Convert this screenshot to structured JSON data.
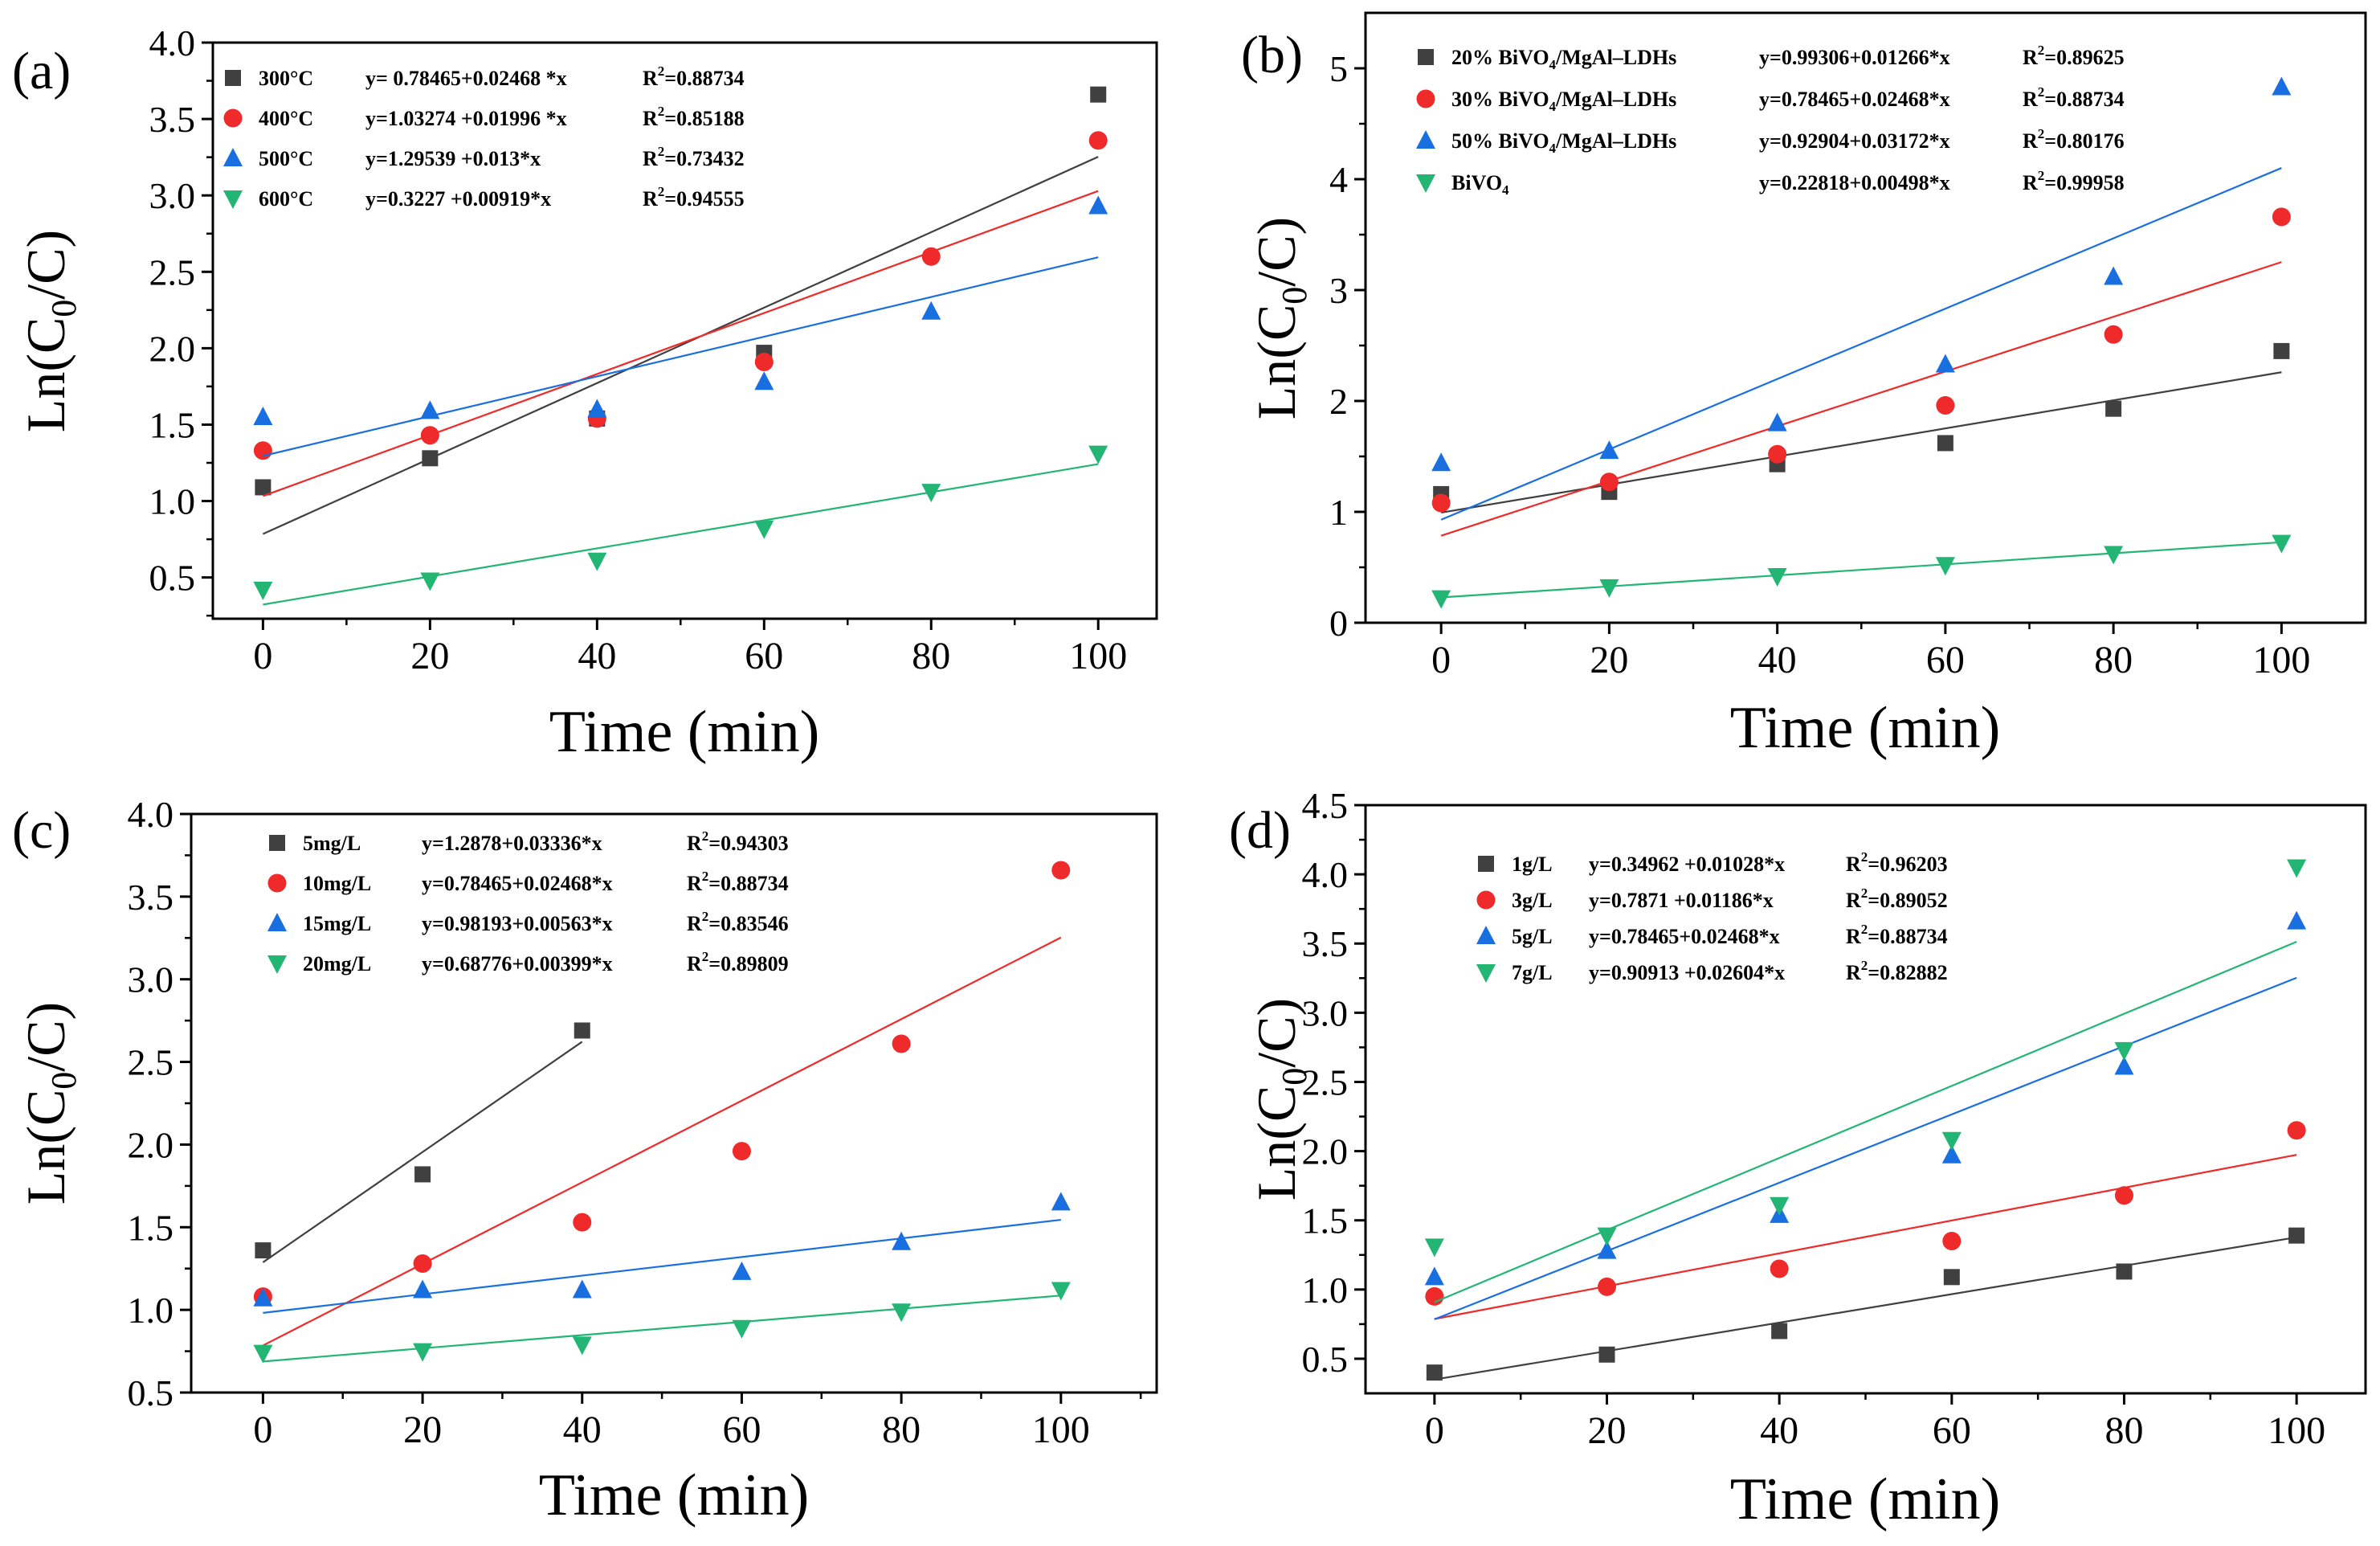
{
  "figure": {
    "panel_count": 4
  },
  "chart_data": [
    {
      "panel_label": "(a)",
      "type": "scatter",
      "title": "",
      "xlabel": "Time (min)",
      "ylabel_main": "Ln(C",
      "ylabel_sub": "0",
      "ylabel_tail": "/C)",
      "xlim": [
        -6,
        107
      ],
      "ylim": [
        0.23,
        4.0
      ],
      "xticks": [
        0,
        20,
        40,
        60,
        80,
        100
      ],
      "yticks": [
        0.5,
        1.0,
        1.5,
        2.0,
        2.5,
        3.0,
        3.5,
        4.0
      ],
      "yticklabels": [
        "0.5",
        "1.0",
        "1.5",
        "2.0",
        "2.5",
        "3.0",
        "3.5",
        "4.0"
      ],
      "legend_position": "top-left",
      "series": [
        {
          "name": "300°C",
          "color": "#404040",
          "marker": "square",
          "x": [
            0,
            20,
            40,
            60
          ],
          "y": [
            1.09,
            1.28,
            1.54,
            1.97
          ],
          "x_extra": [
            100
          ],
          "y_extra": [
            3.66
          ],
          "fit": {
            "intercept": 0.78465,
            "slope": 0.02468,
            "x0": 0,
            "x1": 100
          },
          "equation": "y= 0.78465+0.02468 *x",
          "r2_label": "R",
          "r2_value": "=0.88734"
        },
        {
          "name": "400°C",
          "color": "#ee2a2a",
          "marker": "circle",
          "x": [
            0,
            20,
            40,
            60,
            80,
            100
          ],
          "y": [
            1.33,
            1.43,
            1.54,
            1.91,
            2.6,
            3.36
          ],
          "fit": {
            "intercept": 1.03274,
            "slope": 0.01996,
            "x0": 0,
            "x1": 100
          },
          "equation": "y=1.03274 +0.01996 *x",
          "r2_label": "R",
          "r2_value": "=0.85188"
        },
        {
          "name": "500°C",
          "color": "#1a6fe0",
          "marker": "triangle-up",
          "x": [
            0,
            20,
            40,
            60,
            80,
            100
          ],
          "y": [
            1.55,
            1.59,
            1.6,
            1.78,
            2.24,
            2.93
          ],
          "fit": {
            "intercept": 1.29539,
            "slope": 0.013,
            "x0": 0,
            "x1": 100
          },
          "equation": "y=1.29539 +0.013*x",
          "r2_label": "R",
          "r2_value": "=0.73432"
        },
        {
          "name": "600°C",
          "color": "#22b573",
          "marker": "triangle-down",
          "x": [
            0,
            20,
            40,
            60,
            80,
            100
          ],
          "y": [
            0.42,
            0.48,
            0.61,
            0.82,
            1.06,
            1.31
          ],
          "fit": {
            "intercept": 0.3227,
            "slope": 0.00919,
            "x0": 0,
            "x1": 100
          },
          "equation": "y=0.3227 +0.00919*x",
          "r2_label": "R",
          "r2_value": "=0.94555"
        }
      ]
    },
    {
      "panel_label": "(b)",
      "type": "scatter",
      "title": "",
      "xlabel": "Time (min)",
      "ylabel_main": "Ln(C",
      "ylabel_sub": "0",
      "ylabel_tail": "/C)",
      "xlim": [
        -9,
        110
      ],
      "ylim": [
        0,
        5.5
      ],
      "xticks": [
        0,
        20,
        40,
        60,
        80,
        100
      ],
      "yticks": [
        0,
        1,
        2,
        3,
        4,
        5
      ],
      "yticklabels": [
        "0",
        "1",
        "2",
        "3",
        "4",
        "5"
      ],
      "legend_position": "top-left",
      "series": [
        {
          "name": "20% BiVO",
          "name_sub": "4",
          "name_tail": "/MgAl–LDHs",
          "color": "#404040",
          "marker": "square",
          "x": [
            0,
            20,
            40,
            60,
            80,
            100
          ],
          "y": [
            1.16,
            1.18,
            1.43,
            1.62,
            1.93,
            2.45
          ],
          "fit": {
            "intercept": 0.99306,
            "slope": 0.01266,
            "x0": 0,
            "x1": 100
          },
          "equation": "y=0.99306+0.01266*x",
          "r2_label": "R",
          "r2_value": "=0.89625"
        },
        {
          "name": "30% BiVO",
          "name_sub": "4",
          "name_tail": "/MgAl–LDHs",
          "color": "#ee2a2a",
          "marker": "circle",
          "x": [
            0,
            20,
            40,
            60,
            80,
            100
          ],
          "y": [
            1.08,
            1.27,
            1.52,
            1.96,
            2.6,
            3.66
          ],
          "fit": {
            "intercept": 0.78465,
            "slope": 0.02468,
            "x0": 0,
            "x1": 100
          },
          "equation": "y=0.78465+0.02468*x",
          "r2_label": "R",
          "r2_value": "=0.88734"
        },
        {
          "name": "50% BiVO",
          "name_sub": "4",
          "name_tail": "/MgAl–LDHs",
          "color": "#1a6fe0",
          "marker": "triangle-up",
          "x": [
            0,
            20,
            40,
            60,
            80,
            100
          ],
          "y": [
            1.44,
            1.55,
            1.8,
            2.33,
            3.12,
            4.83
          ],
          "fit": {
            "intercept": 0.92904,
            "slope": 0.03172,
            "x0": 0,
            "x1": 100
          },
          "equation": "y=0.92904+0.03172*x",
          "r2_label": "R",
          "r2_value": "=0.80176"
        },
        {
          "name": "BiVO",
          "name_sub": "4",
          "name_tail": "",
          "color": "#22b573",
          "marker": "triangle-down",
          "x": [
            0,
            20,
            40,
            60,
            80,
            100
          ],
          "y": [
            0.22,
            0.32,
            0.42,
            0.52,
            0.62,
            0.72
          ],
          "fit": {
            "intercept": 0.22818,
            "slope": 0.00498,
            "x0": 0,
            "x1": 100
          },
          "equation": "y=0.22818+0.00498*x",
          "r2_label": "R",
          "r2_value": "=0.99958"
        }
      ]
    },
    {
      "panel_label": "(c)",
      "type": "scatter",
      "title": "",
      "xlabel": "Time (min)",
      "ylabel_main": "Ln(C",
      "ylabel_sub": "0",
      "ylabel_tail": "/C)",
      "xlim": [
        -9,
        112
      ],
      "ylim": [
        0.5,
        4.0
      ],
      "xticks": [
        0,
        20,
        40,
        60,
        80,
        100
      ],
      "yticks": [
        0.5,
        1.0,
        1.5,
        2.0,
        2.5,
        3.0,
        3.5,
        4.0
      ],
      "yticklabels": [
        "0.5",
        "1.0",
        "1.5",
        "2.0",
        "2.5",
        "3.0",
        "3.5",
        "4.0"
      ],
      "legend_position": "top-left",
      "series": [
        {
          "name": "5mg/L",
          "color": "#404040",
          "marker": "square",
          "x": [
            0,
            20,
            40
          ],
          "y": [
            1.36,
            1.82,
            2.69
          ],
          "fit": {
            "intercept": 1.2878,
            "slope": 0.03336,
            "x0": 0,
            "x1": 40
          },
          "equation": "y=1.2878+0.03336*x",
          "r2_label": "R",
          "r2_value": "=0.94303"
        },
        {
          "name": "10mg/L",
          "color": "#ee2a2a",
          "marker": "circle",
          "x": [
            0,
            20,
            40,
            60,
            80,
            100
          ],
          "y": [
            1.08,
            1.28,
            1.53,
            1.96,
            2.61,
            3.66
          ],
          "fit": {
            "intercept": 0.78465,
            "slope": 0.02468,
            "x0": 0,
            "x1": 100
          },
          "equation": "y=0.78465+0.02468*x",
          "r2_label": "R",
          "r2_value": "=0.88734"
        },
        {
          "name": "15mg/L",
          "color": "#1a6fe0",
          "marker": "triangle-up",
          "x": [
            0,
            20,
            40,
            60,
            80,
            100
          ],
          "y": [
            1.07,
            1.12,
            1.12,
            1.23,
            1.41,
            1.65
          ],
          "fit": {
            "intercept": 0.98193,
            "slope": 0.00563,
            "x0": 0,
            "x1": 100
          },
          "equation": "y=0.98193+0.00563*x",
          "r2_label": "R",
          "r2_value": "=0.83546"
        },
        {
          "name": "20mg/L",
          "color": "#22b573",
          "marker": "triangle-down",
          "x": [
            0,
            20,
            40,
            60,
            80,
            100
          ],
          "y": [
            0.74,
            0.75,
            0.79,
            0.89,
            0.99,
            1.12
          ],
          "fit": {
            "intercept": 0.68776,
            "slope": 0.00399,
            "x0": 0,
            "x1": 100
          },
          "equation": "y=0.68776+0.00399*x",
          "r2_label": "R",
          "r2_value": "=0.89809"
        }
      ]
    },
    {
      "panel_label": "(d)",
      "type": "scatter",
      "title": "",
      "xlabel": "Time (min)",
      "ylabel_main": "Ln(C",
      "ylabel_sub": "0",
      "ylabel_tail": "/C)",
      "xlim": [
        -8,
        108
      ],
      "ylim": [
        0.25,
        4.5
      ],
      "xticks": [
        0,
        20,
        40,
        60,
        80,
        100
      ],
      "yticks": [
        0.5,
        1.0,
        1.5,
        2.0,
        2.5,
        3.0,
        3.5,
        4.0,
        4.5
      ],
      "yticklabels": [
        "0.5",
        "1.0",
        "1.5",
        "2.0",
        "2.5",
        "3.0",
        "3.5",
        "4.0",
        "4.5"
      ],
      "legend_position": "top-left",
      "series": [
        {
          "name": "1g/L",
          "color": "#404040",
          "marker": "square",
          "x": [
            0,
            20,
            40,
            60,
            80,
            100
          ],
          "y": [
            0.4,
            0.53,
            0.7,
            1.09,
            1.13,
            1.39
          ],
          "fit": {
            "intercept": 0.34962,
            "slope": 0.01028,
            "x0": 0,
            "x1": 100
          },
          "equation": "y=0.34962 +0.01028*x",
          "r2_label": "R",
          "r2_value": "=0.96203"
        },
        {
          "name": "3g/L",
          "color": "#ee2a2a",
          "marker": "circle",
          "x": [
            0,
            20,
            40,
            60,
            80,
            100
          ],
          "y": [
            0.95,
            1.02,
            1.15,
            1.35,
            1.68,
            2.15
          ],
          "fit": {
            "intercept": 0.7871,
            "slope": 0.01186,
            "x0": 0,
            "x1": 100
          },
          "equation": "y=0.7871 +0.01186*x",
          "r2_label": "R",
          "r2_value": "=0.89052"
        },
        {
          "name": "5g/L",
          "color": "#1a6fe0",
          "marker": "triangle-up",
          "x": [
            0,
            20,
            40,
            60,
            80,
            100
          ],
          "y": [
            1.09,
            1.28,
            1.54,
            1.97,
            2.61,
            3.66
          ],
          "fit": {
            "intercept": 0.78465,
            "slope": 0.02468,
            "x0": 0,
            "x1": 100
          },
          "equation": "y=0.78465+0.02468*x",
          "r2_label": "R",
          "r2_value": "=0.88734"
        },
        {
          "name": "7g/L",
          "color": "#22b573",
          "marker": "triangle-down",
          "x": [
            0,
            20,
            40,
            60,
            80,
            100
          ],
          "y": [
            1.31,
            1.39,
            1.61,
            2.08,
            2.73,
            4.05
          ],
          "fit": {
            "intercept": 0.90913,
            "slope": 0.02604,
            "x0": 0,
            "x1": 100
          },
          "equation": "y=0.90913 +0.02604*x",
          "r2_label": "R",
          "r2_value": "=0.82882"
        }
      ]
    }
  ]
}
